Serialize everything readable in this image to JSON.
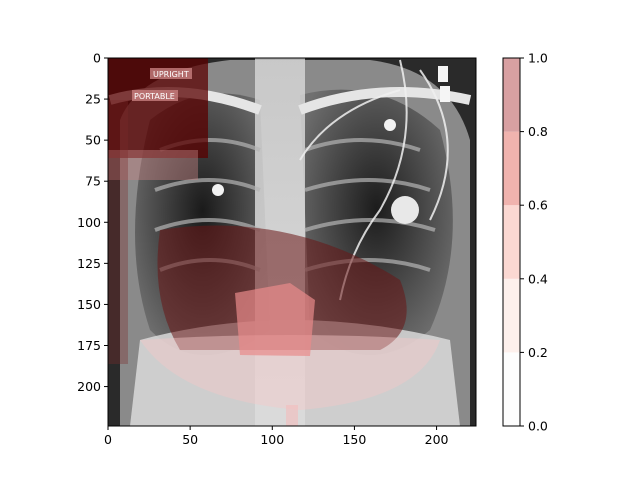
{
  "image": {
    "subject": "xray-with-heatmap",
    "overlay_labels": [
      "UPRIGHT",
      "PORTABLE"
    ]
  },
  "axes": {
    "x_range": [
      0,
      224
    ],
    "y_range": [
      0,
      224
    ],
    "x_ticks": [
      {
        "value": 0,
        "label": "0"
      },
      {
        "value": 50,
        "label": "50"
      },
      {
        "value": 100,
        "label": "100"
      },
      {
        "value": 150,
        "label": "150"
      },
      {
        "value": 200,
        "label": "200"
      }
    ],
    "y_ticks": [
      {
        "value": 0,
        "label": "0"
      },
      {
        "value": 25,
        "label": "25"
      },
      {
        "value": 50,
        "label": "50"
      },
      {
        "value": 75,
        "label": "75"
      },
      {
        "value": 100,
        "label": "100"
      },
      {
        "value": 125,
        "label": "125"
      },
      {
        "value": 150,
        "label": "150"
      },
      {
        "value": 175,
        "label": "175"
      },
      {
        "value": 200,
        "label": "200"
      }
    ]
  },
  "colorbar": {
    "range": [
      0.0,
      1.0
    ],
    "ticks": [
      {
        "value": 0.0,
        "label": "0.0"
      },
      {
        "value": 0.2,
        "label": "0.2"
      },
      {
        "value": 0.4,
        "label": "0.4"
      },
      {
        "value": 0.6,
        "label": "0.6"
      },
      {
        "value": 0.8,
        "label": "0.8"
      },
      {
        "value": 1.0,
        "label": "1.0"
      }
    ],
    "bins": [
      {
        "from": 0.0,
        "to": 0.2,
        "color": "#fdfdfd"
      },
      {
        "from": 0.2,
        "to": 0.4,
        "color": "#fdf0ec"
      },
      {
        "from": 0.4,
        "to": 0.6,
        "color": "#fbd8d2"
      },
      {
        "from": 0.6,
        "to": 0.8,
        "color": "#f0b3ae"
      },
      {
        "from": 0.8,
        "to": 1.0,
        "color": "#d8a0a2"
      }
    ]
  }
}
